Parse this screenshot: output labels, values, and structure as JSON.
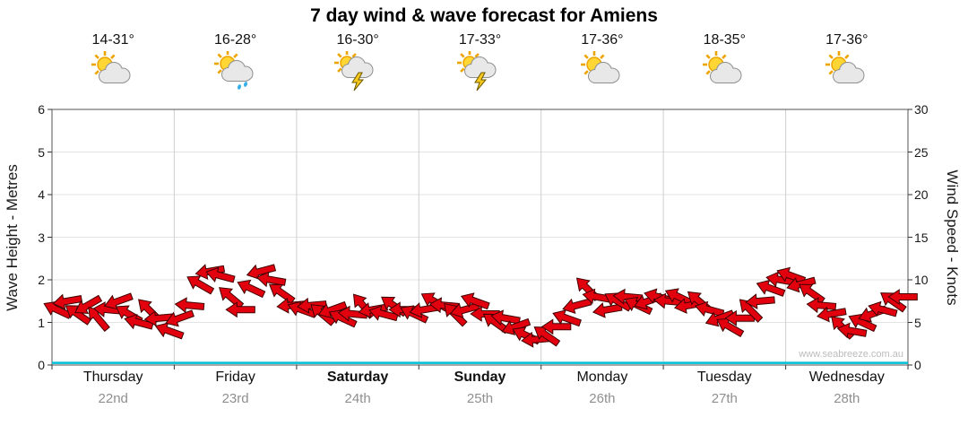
{
  "title": "7 day wind & wave forecast for Amiens",
  "watermark": "www.seabreeze.com.au",
  "days": [
    {
      "name": "Thursday",
      "date": "22nd",
      "temp": "14-31°",
      "icon": "partly-cloudy",
      "bold": false
    },
    {
      "name": "Friday",
      "date": "23rd",
      "temp": "16-28°",
      "icon": "sun-shower",
      "bold": false
    },
    {
      "name": "Saturday",
      "date": "24th",
      "temp": "16-30°",
      "icon": "storm",
      "bold": true
    },
    {
      "name": "Sunday",
      "date": "25th",
      "temp": "17-33°",
      "icon": "storm",
      "bold": true
    },
    {
      "name": "Monday",
      "date": "26th",
      "temp": "17-36°",
      "icon": "partly-cloudy",
      "bold": false
    },
    {
      "name": "Tuesday",
      "date": "27th",
      "temp": "18-35°",
      "icon": "partly-cloudy",
      "bold": false
    },
    {
      "name": "Wednesday",
      "date": "28th",
      "temp": "17-36°",
      "icon": "partly-cloudy",
      "bold": false
    }
  ],
  "axes": {
    "left_label": "Wave Height - Metres",
    "left_ticks": [
      "0",
      "1",
      "2",
      "3",
      "4",
      "5",
      "6"
    ],
    "right_label": "Wind Speed - Knots",
    "right_ticks": [
      "0",
      "5",
      "10",
      "15",
      "20",
      "25",
      "30"
    ]
  },
  "colors": {
    "arrow": "#e2000f",
    "arrow_outline": "#400000",
    "wave_line": "#00bfd6",
    "grid": "#e3e3e3",
    "day_grid": "#cfcfcf",
    "frame": "#707070"
  },
  "chart_data": {
    "type": "scatter",
    "marker": "wind-arrow",
    "title": "7 day wind & wave forecast for Amiens",
    "x_categories": [
      "Thursday 22nd",
      "Friday 23rd",
      "Saturday 24th",
      "Sunday 25th",
      "Monday 26th",
      "Tuesday 27th",
      "Wednesday 28th"
    ],
    "temps": [
      "14-31°",
      "16-28°",
      "16-30°",
      "17-33°",
      "17-36°",
      "18-35°",
      "17-36°"
    ],
    "samples_per_day": 12,
    "y_left_label": "Wave Height - Metres",
    "y_left_range": [
      0,
      6
    ],
    "y_right_label": "Wind Speed - Knots",
    "y_right_range": [
      0,
      30
    ],
    "grid": true,
    "legend": "none",
    "wave_height_m": 0.05,
    "wind_knots": [
      6.5,
      7.5,
      6,
      7,
      5.5,
      6.5,
      7.5,
      6,
      5,
      6.5,
      5.5,
      4,
      5.5,
      7,
      9.5,
      11,
      10.5,
      8,
      6.5,
      9,
      11,
      10,
      8.5,
      7,
      6.5,
      7,
      6,
      6.5,
      5.5,
      6,
      7,
      6.5,
      6,
      7,
      6.5,
      6,
      6.5,
      7.5,
      7,
      6,
      6.5,
      7.5,
      6,
      5,
      5.5,
      4.5,
      3.5,
      3,
      3.5,
      4.5,
      5.5,
      7,
      9,
      8,
      6.5,
      7.5,
      8,
      7,
      7.5,
      8,
      7.5,
      8,
      7,
      7.5,
      6.5,
      5.5,
      4.5,
      5.5,
      6.5,
      7.5,
      9,
      10,
      10.5,
      9.5,
      8.5,
      7,
      6,
      4.5,
      4,
      5,
      6,
      6.5,
      7.5,
      8
    ],
    "wind_dir_deg": [
      205,
      170,
      215,
      150,
      230,
      185,
      160,
      210,
      195,
      225,
      175,
      200,
      160,
      185,
      210,
      170,
      195,
      220,
      180,
      205,
      165,
      190,
      215,
      175,
      200,
      175,
      220,
      160,
      205,
      185,
      230,
      170,
      195,
      215,
      180,
      205,
      170,
      210,
      185,
      225,
      165,
      200,
      180,
      215,
      190,
      160,
      205,
      175,
      215,
      180,
      200,
      165,
      225,
      190,
      170,
      210,
      185,
      205,
      160,
      195,
      185,
      205,
      170,
      220,
      195,
      160,
      210,
      180,
      225,
      175,
      200,
      190,
      200,
      165,
      215,
      185,
      170,
      225,
      190,
      205,
      160,
      195,
      215,
      180
    ]
  }
}
